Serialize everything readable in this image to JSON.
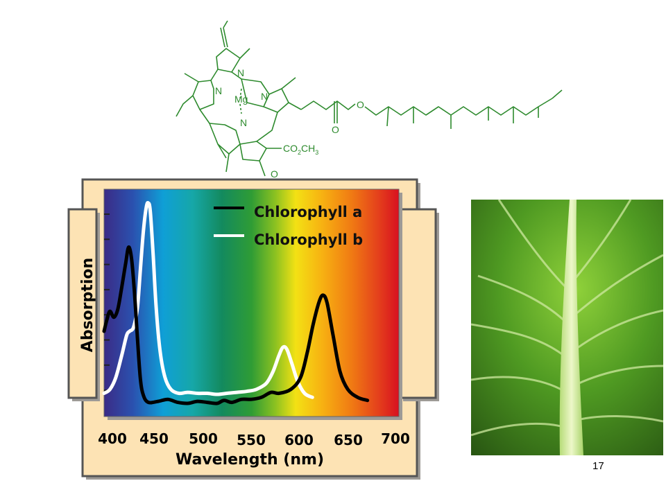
{
  "molecule": {
    "mg_label": "Mg",
    "n_label": "N",
    "o_label": "O",
    "ester_label": "CO",
    "ester_sub": "2",
    "ester_label2": "CH",
    "ester_sub2": "3"
  },
  "page_number": "17",
  "colors": {
    "molecule_green": "#2d8a2d",
    "frame_fill": "#fde3b4",
    "chlorophyll_a": "#000000",
    "chlorophyll_b": "#ffffff"
  },
  "chart_data": {
    "type": "line",
    "xlabel": "Wavelength (nm)",
    "ylabel": "Absorption",
    "xlim": [
      400,
      700
    ],
    "ylim": [
      0,
      1
    ],
    "x_ticks": [
      400,
      450,
      500,
      550,
      600,
      650,
      700
    ],
    "y_ticks_count": 8,
    "y_tick_labels": false,
    "legend_position": "top-right",
    "background": "visible-spectrum-gradient",
    "series": [
      {
        "name": "Chlorophyll a",
        "color": "#000000",
        "points": [
          [
            400,
            0.36
          ],
          [
            403,
            0.42
          ],
          [
            406,
            0.46
          ],
          [
            410,
            0.43
          ],
          [
            414,
            0.47
          ],
          [
            418,
            0.58
          ],
          [
            422,
            0.7
          ],
          [
            425,
            0.78
          ],
          [
            428,
            0.72
          ],
          [
            431,
            0.55
          ],
          [
            434,
            0.32
          ],
          [
            437,
            0.12
          ],
          [
            440,
            0.04
          ],
          [
            445,
            0.005
          ],
          [
            455,
            0.01
          ],
          [
            465,
            0.02
          ],
          [
            475,
            0.005
          ],
          [
            485,
            0.0
          ],
          [
            495,
            0.01
          ],
          [
            505,
            0.005
          ],
          [
            515,
            0.0
          ],
          [
            522,
            0.015
          ],
          [
            530,
            0.005
          ],
          [
            540,
            0.02
          ],
          [
            550,
            0.02
          ],
          [
            560,
            0.03
          ],
          [
            570,
            0.055
          ],
          [
            578,
            0.05
          ],
          [
            590,
            0.07
          ],
          [
            600,
            0.13
          ],
          [
            607,
            0.26
          ],
          [
            613,
            0.4
          ],
          [
            619,
            0.51
          ],
          [
            623,
            0.54
          ],
          [
            627,
            0.5
          ],
          [
            633,
            0.34
          ],
          [
            640,
            0.16
          ],
          [
            648,
            0.07
          ],
          [
            658,
            0.03
          ],
          [
            668,
            0.015
          ]
        ]
      },
      {
        "name": "Chlorophyll b",
        "color": "#ffffff",
        "points": [
          [
            400,
            0.05
          ],
          [
            406,
            0.07
          ],
          [
            412,
            0.13
          ],
          [
            418,
            0.24
          ],
          [
            423,
            0.34
          ],
          [
            426,
            0.36
          ],
          [
            430,
            0.38
          ],
          [
            434,
            0.48
          ],
          [
            437,
            0.67
          ],
          [
            440,
            0.86
          ],
          [
            443,
            0.98
          ],
          [
            445,
            1.0
          ],
          [
            447,
            0.96
          ],
          [
            450,
            0.74
          ],
          [
            453,
            0.48
          ],
          [
            457,
            0.26
          ],
          [
            462,
            0.13
          ],
          [
            468,
            0.07
          ],
          [
            476,
            0.05
          ],
          [
            485,
            0.055
          ],
          [
            495,
            0.05
          ],
          [
            505,
            0.05
          ],
          [
            515,
            0.045
          ],
          [
            525,
            0.05
          ],
          [
            535,
            0.055
          ],
          [
            545,
            0.06
          ],
          [
            555,
            0.07
          ],
          [
            565,
            0.1
          ],
          [
            572,
            0.16
          ],
          [
            578,
            0.24
          ],
          [
            582,
            0.28
          ],
          [
            586,
            0.27
          ],
          [
            591,
            0.2
          ],
          [
            597,
            0.11
          ],
          [
            604,
            0.05
          ],
          [
            612,
            0.03
          ]
        ]
      }
    ]
  }
}
